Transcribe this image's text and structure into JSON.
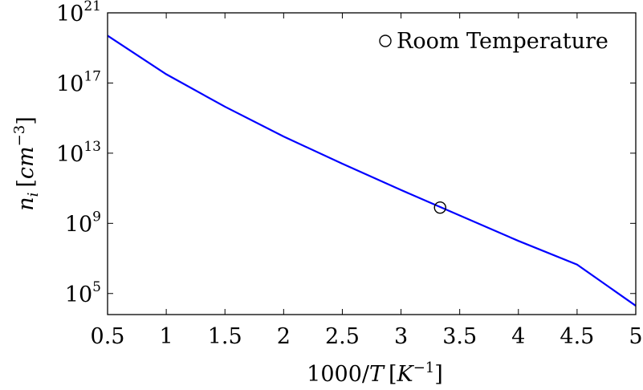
{
  "chart_data": {
    "type": "line",
    "x_scale": "linear",
    "y_scale": "log",
    "xlim": [
      0.5,
      5
    ],
    "ylim_exponent": [
      3.8,
      21
    ],
    "xlabel": {
      "base": "1000/",
      "var": "T",
      "unit_open": "[",
      "unit_var": "K",
      "unit_sup": "−1",
      "unit_close": "]"
    },
    "ylabel": {
      "var": "n",
      "sub": "i",
      "unit_open": "[",
      "unit_var": "cm",
      "unit_sup": "−3",
      "unit_close": "]"
    },
    "x_ticks": [
      {
        "value": 0.5,
        "label": "0.5"
      },
      {
        "value": 1,
        "label": "1"
      },
      {
        "value": 1.5,
        "label": "1.5"
      },
      {
        "value": 2,
        "label": "2"
      },
      {
        "value": 2.5,
        "label": "2.5"
      },
      {
        "value": 3,
        "label": "3"
      },
      {
        "value": 3.5,
        "label": "3.5"
      },
      {
        "value": 4,
        "label": "4"
      },
      {
        "value": 4.5,
        "label": "4.5"
      },
      {
        "value": 5,
        "label": "5"
      }
    ],
    "y_ticks": [
      {
        "exponent": 5,
        "base": "10",
        "exp": "5"
      },
      {
        "exponent": 9,
        "base": "10",
        "exp": "9"
      },
      {
        "exponent": 13,
        "base": "10",
        "exp": "13"
      },
      {
        "exponent": 17,
        "base": "10",
        "exp": "17"
      },
      {
        "exponent": 21,
        "base": "10",
        "exp": "21"
      }
    ],
    "series": [
      {
        "color": "#0000ff",
        "x": [
          0.5,
          1.0,
          1.5,
          2.0,
          2.5,
          3.0,
          3.5,
          4.0,
          4.5,
          5.0
        ],
        "log10_y": [
          19.7,
          17.5,
          15.65,
          13.95,
          12.4,
          10.9,
          9.45,
          8.0,
          6.65,
          4.3
        ]
      }
    ],
    "markers": [
      {
        "name": "Room Temperature",
        "x": 3.333,
        "log10_y": 9.9,
        "shape": "circle"
      }
    ],
    "legend": {
      "label": "Room Temperature",
      "position": "top-right"
    },
    "grid": false
  }
}
